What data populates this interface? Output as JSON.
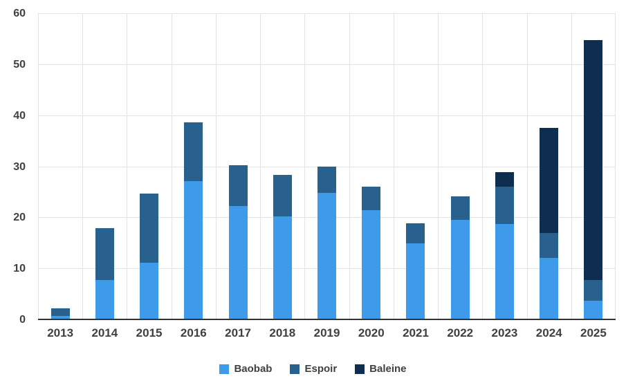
{
  "chart_data": {
    "type": "bar",
    "stacked": true,
    "title": "",
    "xlabel": "",
    "ylabel": "",
    "ylim": [
      0,
      60
    ],
    "yticks": [
      0,
      10,
      20,
      30,
      40,
      50,
      60
    ],
    "grid": true,
    "legend_position": "bottom",
    "categories": [
      "2013",
      "2014",
      "2015",
      "2016",
      "2017",
      "2018",
      "2019",
      "2020",
      "2021",
      "2022",
      "2023",
      "2024",
      "2025"
    ],
    "series": [
      {
        "name": "Baobab",
        "color": "#3D9BE9",
        "values": [
          0.8,
          7.8,
          11.3,
          27.2,
          22.4,
          20.3,
          24.9,
          21.6,
          15.1,
          19.7,
          18.8,
          12.2,
          3.8
        ]
      },
      {
        "name": "Espoir",
        "color": "#29618E",
        "values": [
          1.5,
          10.2,
          13.5,
          11.6,
          8.0,
          8.1,
          5.2,
          4.6,
          3.8,
          4.5,
          7.3,
          4.9,
          4.0
        ]
      },
      {
        "name": "Baleine",
        "color": "#0F2E4F",
        "values": [
          0,
          0,
          0,
          0,
          0,
          0,
          0,
          0,
          0,
          0,
          2.9,
          20.6,
          47.0
        ]
      }
    ]
  }
}
